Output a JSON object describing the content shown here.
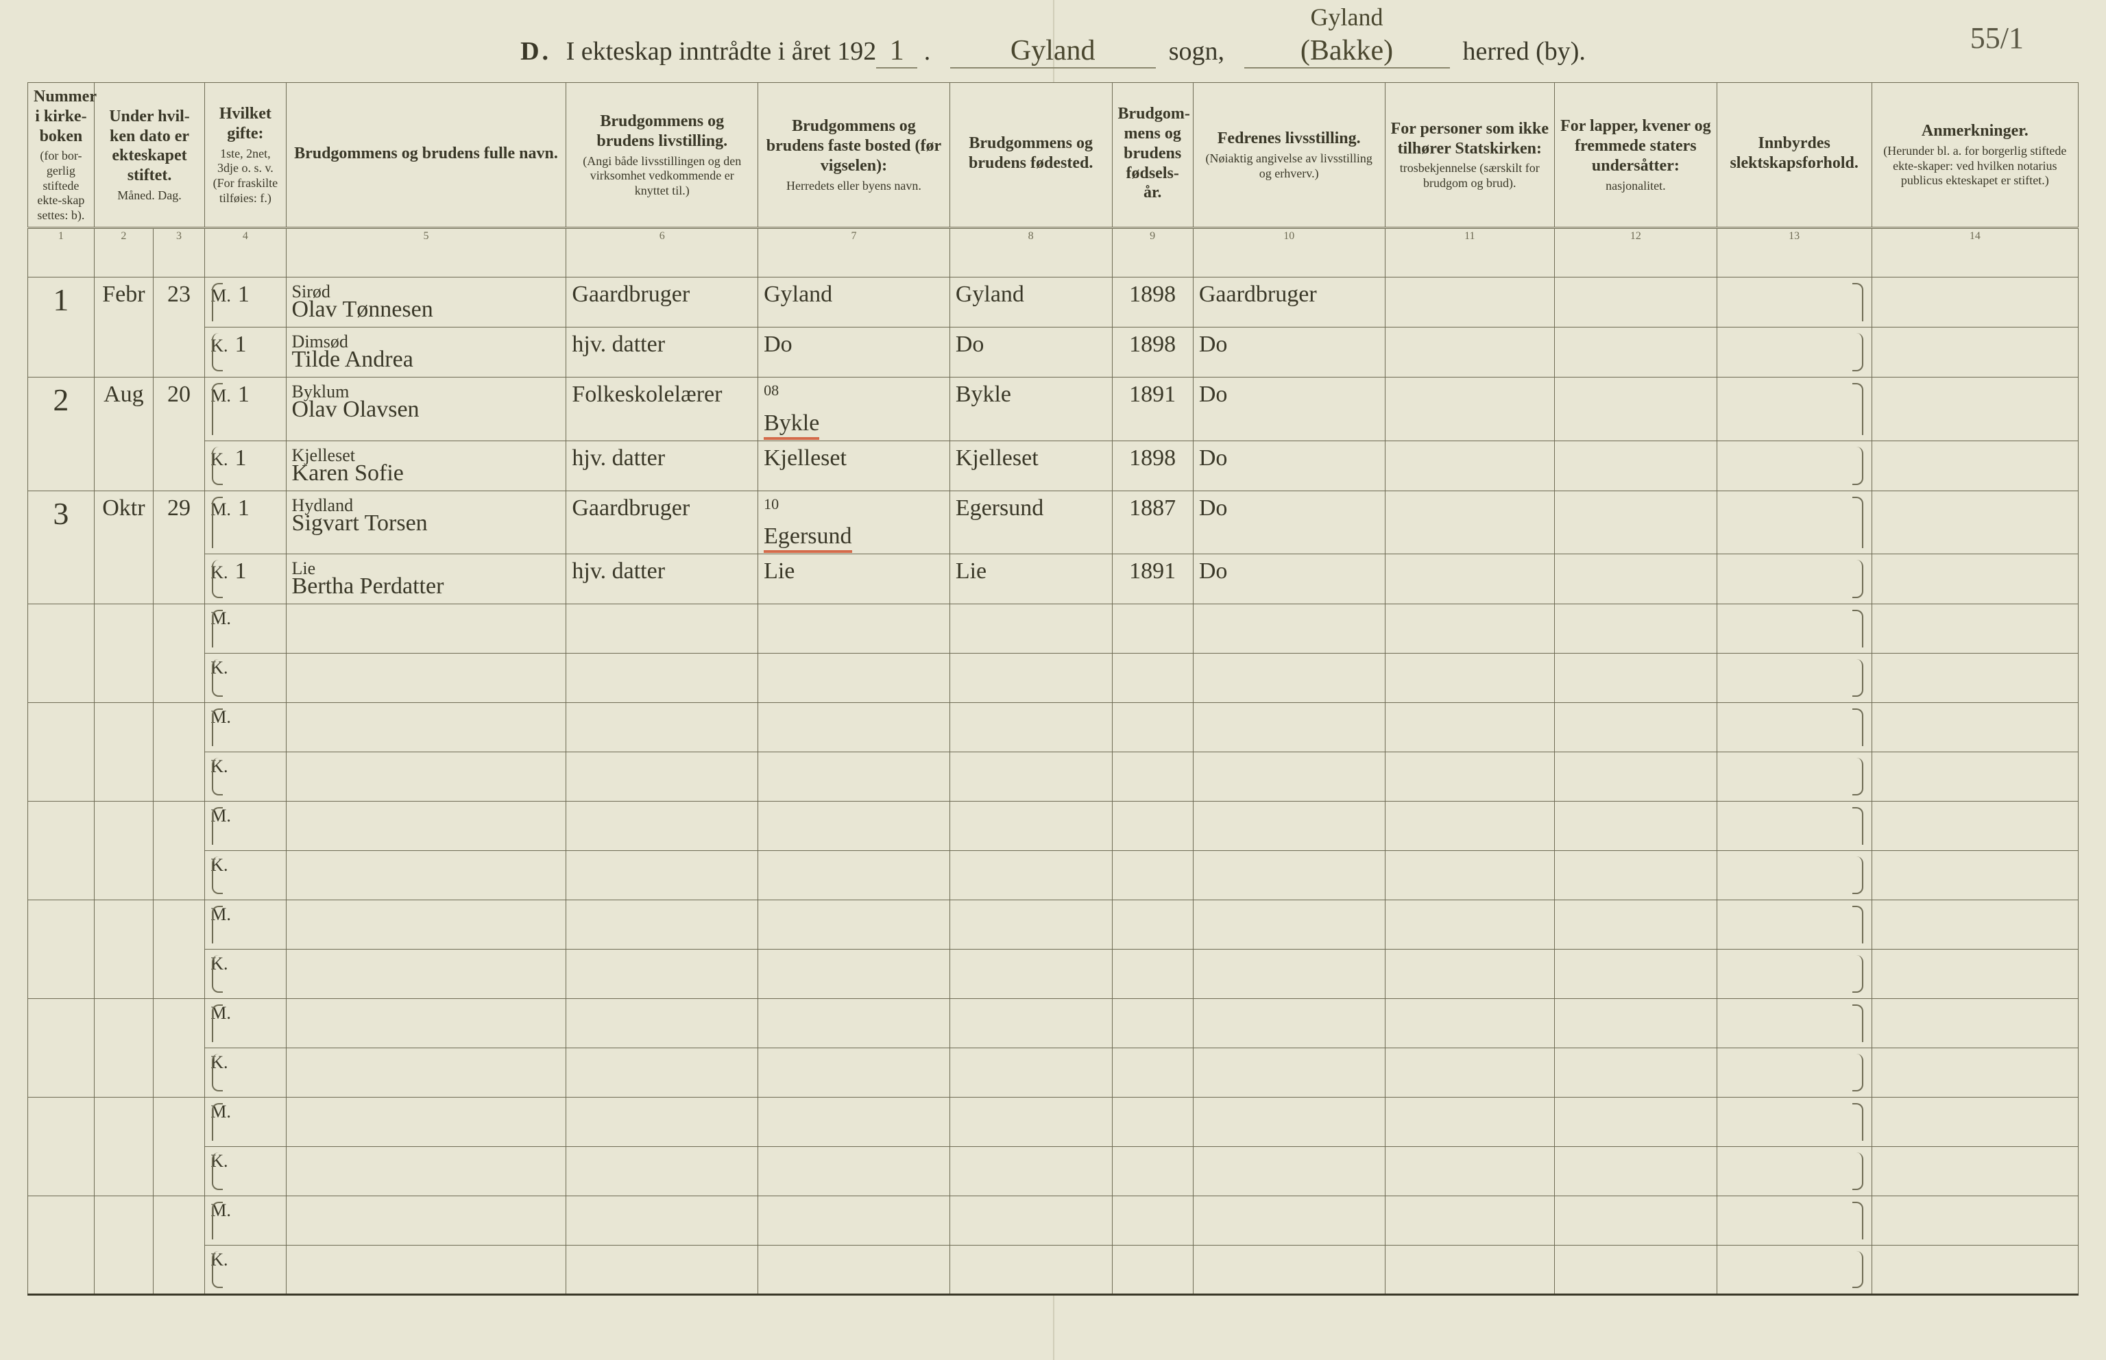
{
  "page_number": "55/1",
  "title": {
    "prefix": "D.",
    "main": "I ekteskap inntrådte i året 192",
    "year_suffix": "1",
    "sogn_value": "Gyland",
    "sogn_label": "sogn,",
    "herred_value_top": "Gyland",
    "herred_value": "(Bakke)",
    "herred_label": "herred (by)."
  },
  "columns": [
    {
      "n": "1",
      "title": "Nummer i kirke-boken",
      "sub": "(for bor-gerlig stiftede ekte-skap settes: b)."
    },
    {
      "n": "2-3",
      "title": "Under hvil-ken dato er ekteskapet stiftet.",
      "sub": "Måned.   Dag."
    },
    {
      "n": "4",
      "title": "Hvilket gifte:",
      "sub": "1ste, 2net, 3dje o. s. v. (For fraskilte tilføies: f.)"
    },
    {
      "n": "5",
      "title": "Brudgommens og brudens fulle navn.",
      "sub": ""
    },
    {
      "n": "6",
      "title": "Brudgommens og brudens livstilling.",
      "sub": "(Angi både livsstillingen og den virksomhet vedkommende er knyttet til.)"
    },
    {
      "n": "7",
      "title": "Brudgommens og brudens faste bosted (før vigselen):",
      "sub": "Herredets eller byens navn."
    },
    {
      "n": "8",
      "title": "Brudgommens og brudens fødested.",
      "sub": ""
    },
    {
      "n": "9",
      "title": "Brudgom-mens og brudens fødsels-år.",
      "sub": ""
    },
    {
      "n": "10",
      "title": "Fedrenes livsstilling.",
      "sub": "(Nøiaktig angivelse av livsstilling og erhverv.)"
    },
    {
      "n": "11",
      "title": "For personer som ikke tilhører Statskirken:",
      "sub": "trosbekjennelse (særskilt for brudgom og brud)."
    },
    {
      "n": "12",
      "title": "For lapper, kvener og fremmede staters undersåtter:",
      "sub": "nasjonalitet."
    },
    {
      "n": "13",
      "title": "Innbyrdes slektskapsforhold.",
      "sub": ""
    },
    {
      "n": "14",
      "title": "Anmerkninger.",
      "sub": "(Herunder bl. a. for borgerlig stiftede ekte-skaper: ved hvilken notarius publicus ekteskapet er stiftet.)"
    }
  ],
  "colnums": [
    "1",
    "2",
    "3",
    "4",
    "5",
    "6",
    "7",
    "8",
    "9",
    "10",
    "11",
    "12",
    "13",
    "14"
  ],
  "mk": {
    "m": "M.",
    "k": "K."
  },
  "entries": [
    {
      "num": "1",
      "month": "Febr",
      "day": "23",
      "groom": {
        "gifte": "1",
        "name": "Olav Tønnesen",
        "over": "Sirød",
        "occ": "Gaardbruger",
        "bosted": "Gyland",
        "fodested": "Gyland",
        "year": "1898",
        "father": "Gaardbruger"
      },
      "bride": {
        "gifte": "1",
        "name": "Tilde Andrea",
        "over": "Dimsød",
        "occ": "hjv. datter",
        "bosted": "Do",
        "fodested": "Do",
        "year": "1898",
        "father": "Do"
      }
    },
    {
      "num": "2",
      "month": "Aug",
      "day": "20",
      "groom": {
        "gifte": "1",
        "name": "Olav Olavsen",
        "over": "Byklum",
        "occ": "Folkeskolelærer",
        "bosted": "Bykle",
        "bosted_sup": "08",
        "bosted_red": true,
        "fodested": "Bykle",
        "year": "1891",
        "father": "Do"
      },
      "bride": {
        "gifte": "1",
        "name": "Karen Sofie",
        "over": "Kjelleset",
        "occ": "hjv. datter",
        "bosted": "Kjelleset",
        "fodested": "Kjelleset",
        "year": "1898",
        "father": "Do"
      }
    },
    {
      "num": "3",
      "month": "Oktr",
      "day": "29",
      "groom": {
        "gifte": "1",
        "name": "Sigvart Torsen",
        "over": "Hydland",
        "occ": "Gaardbruger",
        "bosted": "Egersund",
        "bosted_sup": "10",
        "bosted_red": true,
        "fodested": "Egersund",
        "year": "1887",
        "father": "Do"
      },
      "bride": {
        "gifte": "1",
        "name": "Bertha Perdatter",
        "over": "Lie",
        "occ": "hjv. datter",
        "bosted": "Lie",
        "fodested": "Lie",
        "year": "1891",
        "father": "Do"
      }
    }
  ],
  "blank_pairs": 7,
  "colors": {
    "paper": "#e8e6d4",
    "ink": "#3a3828",
    "rule": "#6e6b54",
    "red": "#d46a4a"
  }
}
